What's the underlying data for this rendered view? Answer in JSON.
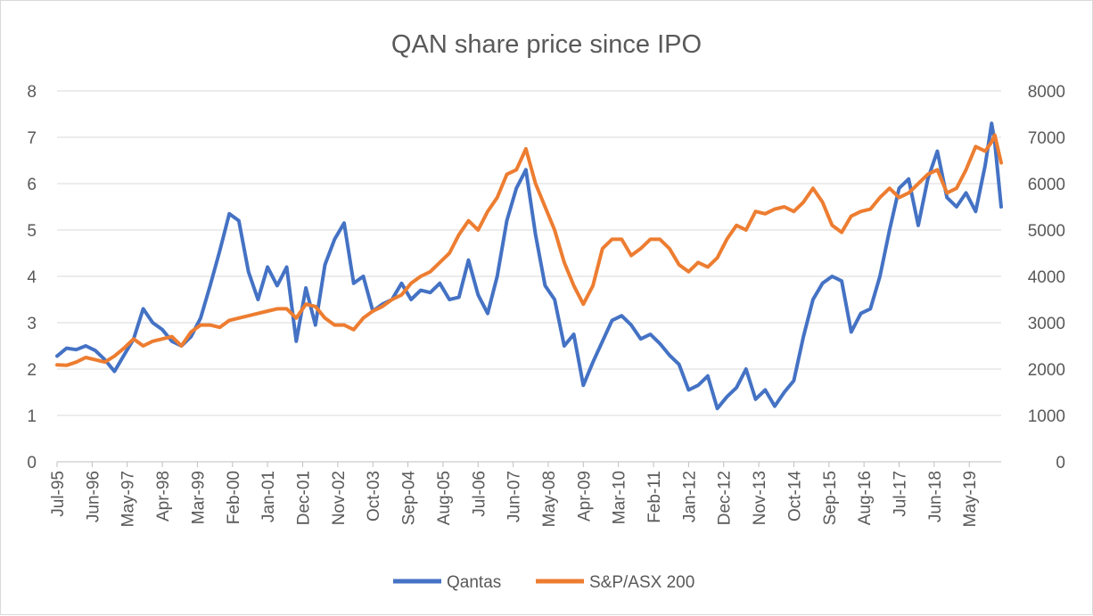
{
  "chart_data": {
    "type": "line",
    "title": "QAN share price since IPO",
    "xlabel": "",
    "ylabel": "",
    "y_left_lim": [
      0,
      8
    ],
    "y_right_lim": [
      0,
      8000
    ],
    "y_left_ticks": [
      "0",
      "1",
      "2",
      "3",
      "4",
      "5",
      "6",
      "7",
      "8"
    ],
    "y_right_ticks": [
      "0",
      "1000",
      "2000",
      "3000",
      "4000",
      "5000",
      "6000",
      "7000",
      "8000"
    ],
    "x_range": [
      "1995-07",
      "2020-03"
    ],
    "x_ticks": [
      "Jul-95",
      "Jun-96",
      "May-97",
      "Apr-98",
      "Mar-99",
      "Feb-00",
      "Jan-01",
      "Dec-01",
      "Nov-02",
      "Oct-03",
      "Sep-04",
      "Aug-05",
      "Jul-06",
      "Jun-07",
      "May-08",
      "Apr-09",
      "Mar-10",
      "Feb-11",
      "Jan-12",
      "Dec-12",
      "Nov-13",
      "Oct-14",
      "Sep-15",
      "Aug-16",
      "Jul-17",
      "Jun-18",
      "May-19"
    ],
    "grid": "horizontal",
    "legend": "bottom",
    "series": [
      {
        "name": "Qantas",
        "axis": "left",
        "color": "#4472c4",
        "points": [
          [
            "1995-07",
            2.28
          ],
          [
            "1995-10",
            2.45
          ],
          [
            "1996-01",
            2.42
          ],
          [
            "1996-04",
            2.5
          ],
          [
            "1996-07",
            2.4
          ],
          [
            "1996-10",
            2.2
          ],
          [
            "1997-01",
            1.95
          ],
          [
            "1997-04",
            2.3
          ],
          [
            "1997-07",
            2.65
          ],
          [
            "1997-10",
            3.3
          ],
          [
            "1998-01",
            3.0
          ],
          [
            "1998-04",
            2.85
          ],
          [
            "1998-07",
            2.6
          ],
          [
            "1998-10",
            2.5
          ],
          [
            "1999-01",
            2.7
          ],
          [
            "1999-04",
            3.1
          ],
          [
            "1999-07",
            3.8
          ],
          [
            "1999-10",
            4.55
          ],
          [
            "2000-01",
            5.35
          ],
          [
            "2000-04",
            5.2
          ],
          [
            "2000-07",
            4.1
          ],
          [
            "2000-10",
            3.5
          ],
          [
            "2001-01",
            4.2
          ],
          [
            "2001-04",
            3.8
          ],
          [
            "2001-07",
            4.2
          ],
          [
            "2001-10",
            2.6
          ],
          [
            "2002-01",
            3.75
          ],
          [
            "2002-04",
            2.95
          ],
          [
            "2002-07",
            4.25
          ],
          [
            "2002-10",
            4.8
          ],
          [
            "2003-01",
            5.15
          ],
          [
            "2003-04",
            3.85
          ],
          [
            "2003-07",
            4.0
          ],
          [
            "2003-10",
            3.25
          ],
          [
            "2004-01",
            3.4
          ],
          [
            "2004-04",
            3.5
          ],
          [
            "2004-07",
            3.85
          ],
          [
            "2004-10",
            3.5
          ],
          [
            "2005-01",
            3.7
          ],
          [
            "2005-04",
            3.65
          ],
          [
            "2005-07",
            3.85
          ],
          [
            "2005-10",
            3.5
          ],
          [
            "2006-01",
            3.55
          ],
          [
            "2006-04",
            4.35
          ],
          [
            "2006-07",
            3.6
          ],
          [
            "2006-10",
            3.2
          ],
          [
            "2007-01",
            4.0
          ],
          [
            "2007-04",
            5.2
          ],
          [
            "2007-07",
            5.9
          ],
          [
            "2007-10",
            6.3
          ],
          [
            "2008-01",
            4.9
          ],
          [
            "2008-04",
            3.8
          ],
          [
            "2008-07",
            3.5
          ],
          [
            "2008-10",
            2.5
          ],
          [
            "2009-01",
            2.75
          ],
          [
            "2009-04",
            1.65
          ],
          [
            "2009-07",
            2.15
          ],
          [
            "2009-10",
            2.6
          ],
          [
            "2010-01",
            3.05
          ],
          [
            "2010-04",
            3.15
          ],
          [
            "2010-07",
            2.95
          ],
          [
            "2010-10",
            2.65
          ],
          [
            "2011-01",
            2.75
          ],
          [
            "2011-04",
            2.55
          ],
          [
            "2011-07",
            2.3
          ],
          [
            "2011-10",
            2.1
          ],
          [
            "2012-01",
            1.55
          ],
          [
            "2012-04",
            1.65
          ],
          [
            "2012-07",
            1.85
          ],
          [
            "2012-10",
            1.15
          ],
          [
            "2013-01",
            1.4
          ],
          [
            "2013-04",
            1.6
          ],
          [
            "2013-07",
            2.0
          ],
          [
            "2013-10",
            1.35
          ],
          [
            "2014-01",
            1.55
          ],
          [
            "2014-04",
            1.2
          ],
          [
            "2014-07",
            1.5
          ],
          [
            "2014-10",
            1.75
          ],
          [
            "2015-01",
            2.7
          ],
          [
            "2015-04",
            3.5
          ],
          [
            "2015-07",
            3.85
          ],
          [
            "2015-10",
            4.0
          ],
          [
            "2016-01",
            3.9
          ],
          [
            "2016-04",
            2.8
          ],
          [
            "2016-07",
            3.2
          ],
          [
            "2016-10",
            3.3
          ],
          [
            "2017-01",
            4.0
          ],
          [
            "2017-04",
            5.0
          ],
          [
            "2017-07",
            5.9
          ],
          [
            "2017-10",
            6.1
          ],
          [
            "2018-01",
            5.1
          ],
          [
            "2018-04",
            6.1
          ],
          [
            "2018-07",
            6.7
          ],
          [
            "2018-10",
            5.7
          ],
          [
            "2019-01",
            5.5
          ],
          [
            "2019-04",
            5.8
          ],
          [
            "2019-07",
            5.4
          ],
          [
            "2019-10",
            6.4
          ],
          [
            "2019-12",
            7.3
          ],
          [
            "2020-01",
            6.9
          ],
          [
            "2020-03",
            5.5
          ]
        ]
      },
      {
        "name": "S&P/ASX 200",
        "axis": "right",
        "color": "#ed7d31",
        "points": [
          [
            "1995-07",
            2090
          ],
          [
            "1995-10",
            2080
          ],
          [
            "1996-01",
            2150
          ],
          [
            "1996-04",
            2250
          ],
          [
            "1996-07",
            2200
          ],
          [
            "1996-10",
            2150
          ],
          [
            "1997-01",
            2280
          ],
          [
            "1997-04",
            2450
          ],
          [
            "1997-07",
            2650
          ],
          [
            "1997-10",
            2500
          ],
          [
            "1998-01",
            2600
          ],
          [
            "1998-04",
            2650
          ],
          [
            "1998-07",
            2700
          ],
          [
            "1998-10",
            2500
          ],
          [
            "1999-01",
            2800
          ],
          [
            "1999-04",
            2950
          ],
          [
            "1999-07",
            2950
          ],
          [
            "1999-10",
            2900
          ],
          [
            "2000-01",
            3050
          ],
          [
            "2000-04",
            3100
          ],
          [
            "2000-07",
            3150
          ],
          [
            "2000-10",
            3200
          ],
          [
            "2001-01",
            3250
          ],
          [
            "2001-04",
            3300
          ],
          [
            "2001-07",
            3300
          ],
          [
            "2001-10",
            3100
          ],
          [
            "2002-01",
            3400
          ],
          [
            "2002-04",
            3350
          ],
          [
            "2002-07",
            3100
          ],
          [
            "2002-10",
            2950
          ],
          [
            "2003-01",
            2950
          ],
          [
            "2003-04",
            2850
          ],
          [
            "2003-07",
            3100
          ],
          [
            "2003-10",
            3250
          ],
          [
            "2004-01",
            3350
          ],
          [
            "2004-04",
            3500
          ],
          [
            "2004-07",
            3600
          ],
          [
            "2004-10",
            3850
          ],
          [
            "2005-01",
            4000
          ],
          [
            "2005-04",
            4100
          ],
          [
            "2005-07",
            4300
          ],
          [
            "2005-10",
            4500
          ],
          [
            "2006-01",
            4900
          ],
          [
            "2006-04",
            5200
          ],
          [
            "2006-07",
            5000
          ],
          [
            "2006-10",
            5400
          ],
          [
            "2007-01",
            5700
          ],
          [
            "2007-04",
            6200
          ],
          [
            "2007-07",
            6300
          ],
          [
            "2007-10",
            6750
          ],
          [
            "2008-01",
            6000
          ],
          [
            "2008-04",
            5500
          ],
          [
            "2008-07",
            5000
          ],
          [
            "2008-10",
            4300
          ],
          [
            "2009-01",
            3800
          ],
          [
            "2009-04",
            3400
          ],
          [
            "2009-07",
            3800
          ],
          [
            "2009-10",
            4600
          ],
          [
            "2010-01",
            4800
          ],
          [
            "2010-04",
            4800
          ],
          [
            "2010-07",
            4450
          ],
          [
            "2010-10",
            4600
          ],
          [
            "2011-01",
            4800
          ],
          [
            "2011-04",
            4800
          ],
          [
            "2011-07",
            4600
          ],
          [
            "2011-10",
            4250
          ],
          [
            "2012-01",
            4100
          ],
          [
            "2012-04",
            4300
          ],
          [
            "2012-07",
            4200
          ],
          [
            "2012-10",
            4400
          ],
          [
            "2013-01",
            4800
          ],
          [
            "2013-04",
            5100
          ],
          [
            "2013-07",
            5000
          ],
          [
            "2013-10",
            5400
          ],
          [
            "2014-01",
            5350
          ],
          [
            "2014-04",
            5450
          ],
          [
            "2014-07",
            5500
          ],
          [
            "2014-10",
            5400
          ],
          [
            "2015-01",
            5600
          ],
          [
            "2015-04",
            5900
          ],
          [
            "2015-07",
            5600
          ],
          [
            "2015-10",
            5100
          ],
          [
            "2016-01",
            4950
          ],
          [
            "2016-04",
            5300
          ],
          [
            "2016-07",
            5400
          ],
          [
            "2016-10",
            5450
          ],
          [
            "2017-01",
            5700
          ],
          [
            "2017-04",
            5900
          ],
          [
            "2017-07",
            5700
          ],
          [
            "2017-10",
            5800
          ],
          [
            "2018-01",
            6000
          ],
          [
            "2018-04",
            6200
          ],
          [
            "2018-07",
            6300
          ],
          [
            "2018-10",
            5800
          ],
          [
            "2019-01",
            5900
          ],
          [
            "2019-04",
            6300
          ],
          [
            "2019-07",
            6800
          ],
          [
            "2019-10",
            6700
          ],
          [
            "2019-12",
            6900
          ],
          [
            "2020-01",
            7050
          ],
          [
            "2020-03",
            6450
          ]
        ]
      }
    ]
  }
}
